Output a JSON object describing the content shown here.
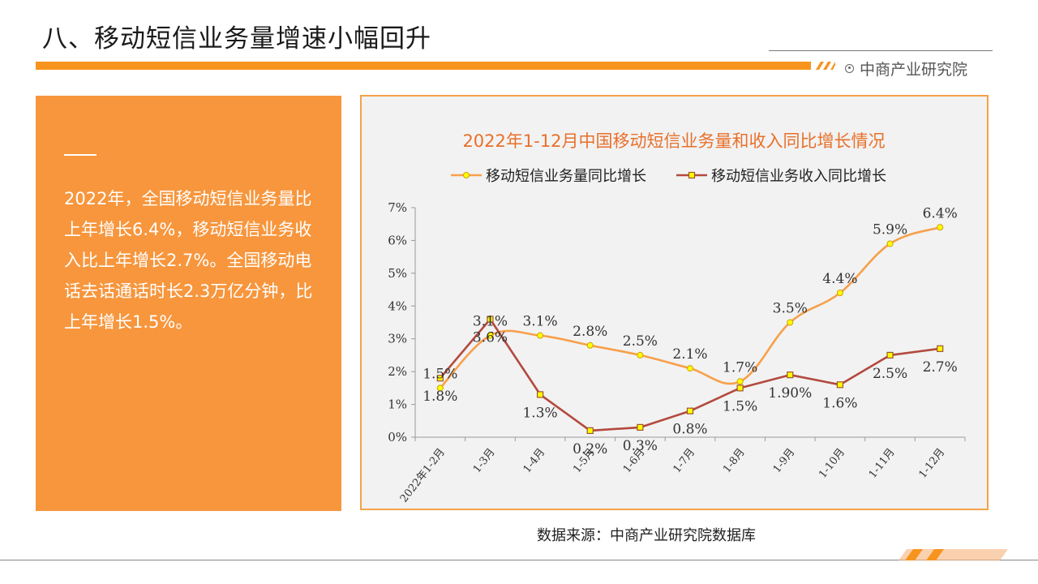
{
  "page": {
    "title": "八、移动短信业务量增速小幅回升",
    "brand": "中商产业研究院",
    "summary": "2022年，全国移动短信业务量比上年增长6.4%，移动短信业务收入比上年增长2.7%。全国移动电话去话通话时长2.3万亿分钟，比上年增长1.5%。",
    "source": "数据来源：中商产业研究院数据库",
    "icons": [
      "circle-logo-icon"
    ],
    "colors": {
      "accent": "#f7941d",
      "panel": "#f7963d",
      "series_volume": "#f7a04b",
      "series_revenue": "#b34a3e",
      "marker_fill": "#ffff00",
      "title_color": "#e8702a"
    }
  },
  "chart_data": {
    "type": "line",
    "title": "2022年1-12月中国移动短信业务量和收入同比增长情况",
    "xlabel": "",
    "ylabel": "",
    "categories": [
      "2022年1-2月",
      "1-3月",
      "1-4月",
      "1-5月",
      "1-6月",
      "1-7月",
      "1-8月",
      "1-9月",
      "1-10月",
      "1-11月",
      "1-12月"
    ],
    "ylim": [
      0,
      7
    ],
    "yticks": [
      "0%",
      "1%",
      "2%",
      "3%",
      "4%",
      "5%",
      "6%",
      "7%"
    ],
    "grid": false,
    "legend": "top",
    "series": [
      {
        "name": "移动短信业务量同比增长",
        "values": [
          1.5,
          3.1,
          3.1,
          2.8,
          2.5,
          2.1,
          1.7,
          3.5,
          4.4,
          5.9,
          6.4
        ],
        "labels": [
          "1.5%",
          "3.1%",
          "3.1%",
          "2.8%",
          "2.5%",
          "2.1%",
          "1.7%",
          "3.5%",
          "4.4%",
          "5.9%",
          "6.4%"
        ]
      },
      {
        "name": "移动短信业务收入同比增长",
        "values": [
          1.8,
          3.6,
          1.3,
          0.2,
          0.3,
          0.8,
          1.5,
          1.9,
          1.6,
          2.5,
          2.7
        ],
        "labels": [
          "1.8%",
          "3.6%",
          "1.3%",
          "0.2%",
          "0.3%",
          "0.8%",
          "1.5%",
          "1.90%",
          "1.6%",
          "2.5%",
          "2.7%"
        ]
      }
    ]
  }
}
